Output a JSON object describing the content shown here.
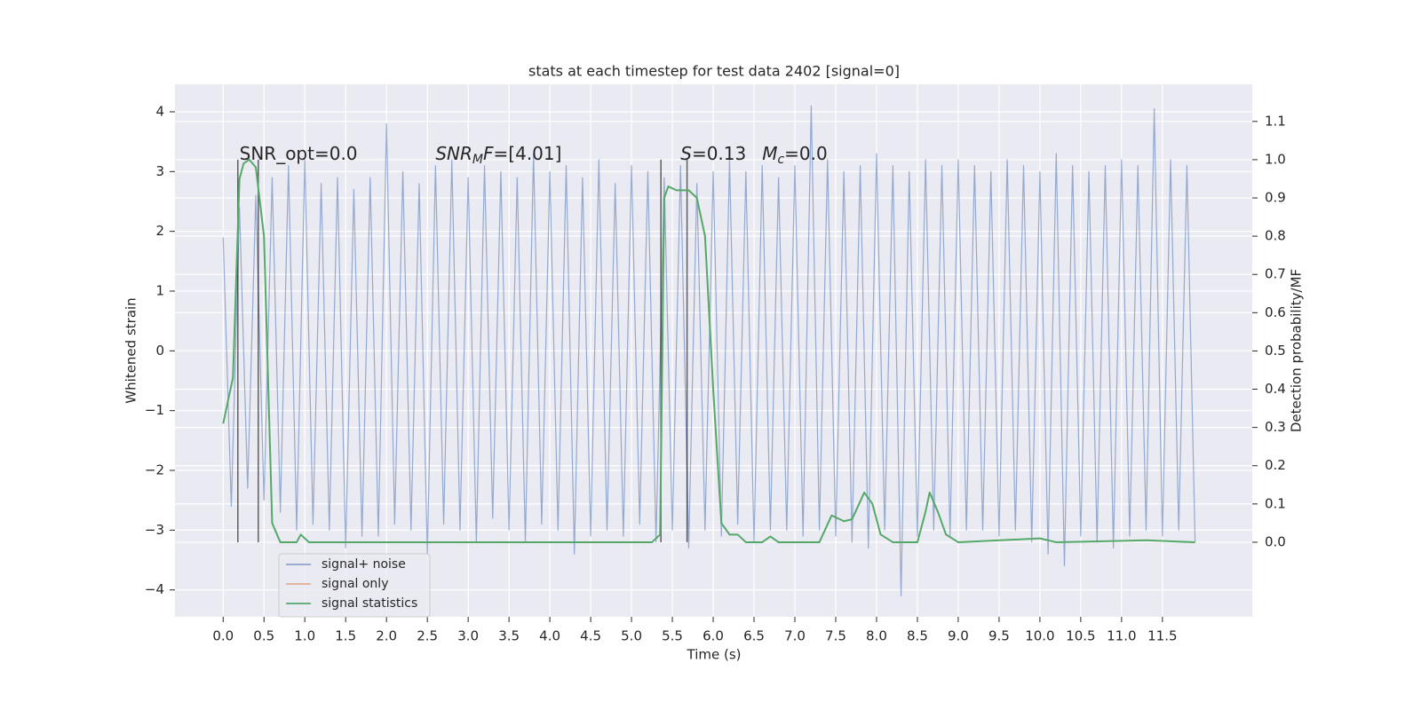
{
  "chart_data": {
    "type": "line",
    "title": "stats at each timestep for test data 2402 [signal=0]",
    "x_label": "Time (s)",
    "y_label": "Whitened strain",
    "y2_label": "Detection probability/MF",
    "xlim": [
      -0.59,
      12.6
    ],
    "ylim": [
      -4.45,
      4.46
    ],
    "y2lim": [
      -0.195,
      1.197
    ],
    "grid": true,
    "legend_loc": "lower left",
    "xticks": [
      {
        "value": 0,
        "label": "0.0"
      },
      0.5,
      {
        "value": 1,
        "label": "1.0"
      },
      1.5,
      {
        "value": 2,
        "label": "2.0"
      },
      2.5,
      {
        "value": 3,
        "label": "3.0"
      },
      3.5,
      {
        "value": 4,
        "label": "4.0"
      },
      4.5,
      {
        "value": 5,
        "label": "5.0"
      },
      5.5,
      {
        "value": 6,
        "label": "6.0"
      },
      6.5,
      {
        "value": 7,
        "label": "7.0"
      },
      7.5,
      {
        "value": 8,
        "label": "8.0"
      },
      8.5,
      {
        "value": 9,
        "label": "9.0"
      },
      9.5,
      {
        "value": 10,
        "label": "10.0"
      },
      10.5,
      {
        "value": 11,
        "label": "11.0"
      },
      11.5
    ],
    "yticks": [
      {
        "value": -4,
        "label": "−4"
      },
      {
        "value": -3,
        "label": "−3"
      },
      {
        "value": -2,
        "label": "−2"
      },
      {
        "value": -1,
        "label": "−1"
      },
      0,
      1,
      2,
      3,
      4
    ],
    "y2ticks": [
      {
        "value": 0,
        "label": "0.0"
      },
      0.1,
      0.2,
      0.3,
      0.4,
      0.5,
      0.6,
      0.7,
      0.8,
      0.9,
      {
        "value": 1,
        "label": "1.0"
      },
      1.1
    ],
    "series": [
      {
        "name": "signal+ noise",
        "color": "#4c72b0",
        "x": [
          0.0,
          0.1,
          0.2,
          0.3,
          0.4,
          0.5,
          0.6,
          0.7,
          0.8,
          0.9,
          1.0,
          1.1,
          1.2,
          1.3,
          1.4,
          1.5,
          1.6,
          1.7,
          1.8,
          1.9,
          2.0,
          2.1,
          2.2,
          2.3,
          2.4,
          2.5,
          2.6,
          2.7,
          2.8,
          2.9,
          3.0,
          3.1,
          3.2,
          3.3,
          3.4,
          3.5,
          3.6,
          3.7,
          3.8,
          3.9,
          4.0,
          4.1,
          4.2,
          4.3,
          4.4,
          4.5,
          4.6,
          4.7,
          4.8,
          4.9,
          5.0,
          5.1,
          5.2,
          5.3,
          5.4,
          5.5,
          5.6,
          5.7,
          5.8,
          5.9,
          6.0,
          6.1,
          6.2,
          6.3,
          6.4,
          6.5,
          6.6,
          6.7,
          6.8,
          6.9,
          7.0,
          7.1,
          7.2,
          7.3,
          7.4,
          7.5,
          7.6,
          7.7,
          7.8,
          7.9,
          8.0,
          8.1,
          8.2,
          8.3,
          8.4,
          8.5,
          8.6,
          8.7,
          8.8,
          8.9,
          9.0,
          9.1,
          9.2,
          9.3,
          9.4,
          9.5,
          9.6,
          9.7,
          9.8,
          9.9,
          10.0,
          10.1,
          10.2,
          10.3,
          10.4,
          10.5,
          10.6,
          10.7,
          10.8,
          10.9,
          11.0,
          11.1,
          11.2,
          11.3,
          11.4,
          11.5,
          11.6,
          11.7,
          11.8,
          11.9
        ],
        "values": [
          1.9,
          -2.6,
          2.4,
          -2.3,
          2.6,
          -2.5,
          2.9,
          -2.7,
          3.1,
          -3.0,
          3.2,
          -2.9,
          2.8,
          -3.0,
          2.9,
          -3.3,
          2.7,
          -3.1,
          2.9,
          -3.1,
          3.8,
          -2.9,
          3.0,
          -3.0,
          2.8,
          -3.4,
          3.1,
          -2.9,
          3.2,
          -3.0,
          2.9,
          -3.2,
          3.1,
          -2.8,
          3.0,
          -3.0,
          2.9,
          -3.2,
          3.3,
          -2.9,
          3.0,
          -3.0,
          3.1,
          -3.4,
          2.9,
          -3.1,
          3.2,
          -3.0,
          2.8,
          -3.1,
          3.1,
          -2.9,
          3.0,
          -3.2,
          2.9,
          -3.0,
          3.1,
          -3.3,
          2.8,
          -3.0,
          3.0,
          -3.1,
          3.2,
          -2.9,
          3.0,
          -3.2,
          3.1,
          -3.0,
          2.9,
          -3.0,
          3.1,
          -3.1,
          4.1,
          -3.0,
          3.2,
          -3.1,
          3.0,
          -3.2,
          3.1,
          -3.3,
          3.3,
          -3.0,
          3.1,
          -4.1,
          3.0,
          -3.1,
          3.2,
          -3.0,
          3.1,
          -3.1,
          3.2,
          -3.0,
          3.1,
          -3.0,
          3.0,
          -3.1,
          3.2,
          -3.0,
          3.1,
          -3.2,
          3.0,
          -3.4,
          3.3,
          -3.6,
          3.1,
          -3.1,
          3.0,
          -3.2,
          3.1,
          -3.3,
          3.2,
          -3.1,
          3.1,
          -3.0,
          4.05,
          -3.1,
          3.2,
          -3.0,
          3.1,
          -3.2
        ]
      },
      {
        "name": "signal only",
        "color": "#dd8452",
        "x": [],
        "values": []
      },
      {
        "name": "signal statistics",
        "color": "#55a868",
        "axis": "y2",
        "x": [
          0.0,
          0.12,
          0.2,
          0.25,
          0.32,
          0.4,
          0.5,
          0.6,
          0.7,
          0.9,
          0.95,
          1.05,
          2.0,
          5.25,
          5.35,
          5.4,
          5.45,
          5.55,
          5.7,
          5.8,
          5.9,
          6.0,
          6.1,
          6.2,
          6.3,
          6.4,
          6.6,
          6.7,
          6.8,
          7.3,
          7.45,
          7.6,
          7.7,
          7.85,
          7.95,
          8.05,
          8.2,
          8.5,
          8.6,
          8.65,
          8.75,
          8.85,
          9.0,
          10.0,
          10.2,
          11.3,
          11.9
        ],
        "values": [
          0.31,
          0.43,
          0.95,
          0.99,
          1.0,
          0.98,
          0.8,
          0.05,
          0.0,
          0.0,
          0.02,
          0.0,
          0.0,
          0.0,
          0.02,
          0.9,
          0.93,
          0.92,
          0.92,
          0.9,
          0.8,
          0.4,
          0.05,
          0.02,
          0.02,
          0.0,
          0.0,
          0.015,
          0.0,
          0.0,
          0.07,
          0.055,
          0.06,
          0.13,
          0.1,
          0.02,
          0.0,
          0.0,
          0.08,
          0.13,
          0.08,
          0.02,
          0.0,
          0.01,
          0.0,
          0.005,
          0.0
        ]
      }
    ],
    "vlines": {
      "x": [
        0.18,
        0.43,
        5.36,
        5.68
      ],
      "y2min": 0,
      "y2max": 1.0,
      "color": "#000000"
    },
    "annotations": [
      {
        "x": 0.2,
        "y": 3.2,
        "parts": [
          {
            "text": "SNR_opt=0.0"
          }
        ]
      },
      {
        "x": 2.6,
        "y": 3.2,
        "parts": [
          {
            "text": "SNR",
            "italic": true
          },
          {
            "text": "M",
            "italic": true,
            "sub": true
          },
          {
            "text": "F",
            "italic": true
          },
          {
            "text": "=[4.01]"
          }
        ]
      },
      {
        "x": 5.6,
        "y": 3.2,
        "parts": [
          {
            "text": "S",
            "italic": true
          },
          {
            "text": "=0.13"
          }
        ]
      },
      {
        "x": 6.6,
        "y": 3.2,
        "parts": [
          {
            "text": "M",
            "italic": true
          },
          {
            "text": "c",
            "italic": true,
            "sub": true
          },
          {
            "text": "=0.0"
          }
        ]
      }
    ]
  }
}
